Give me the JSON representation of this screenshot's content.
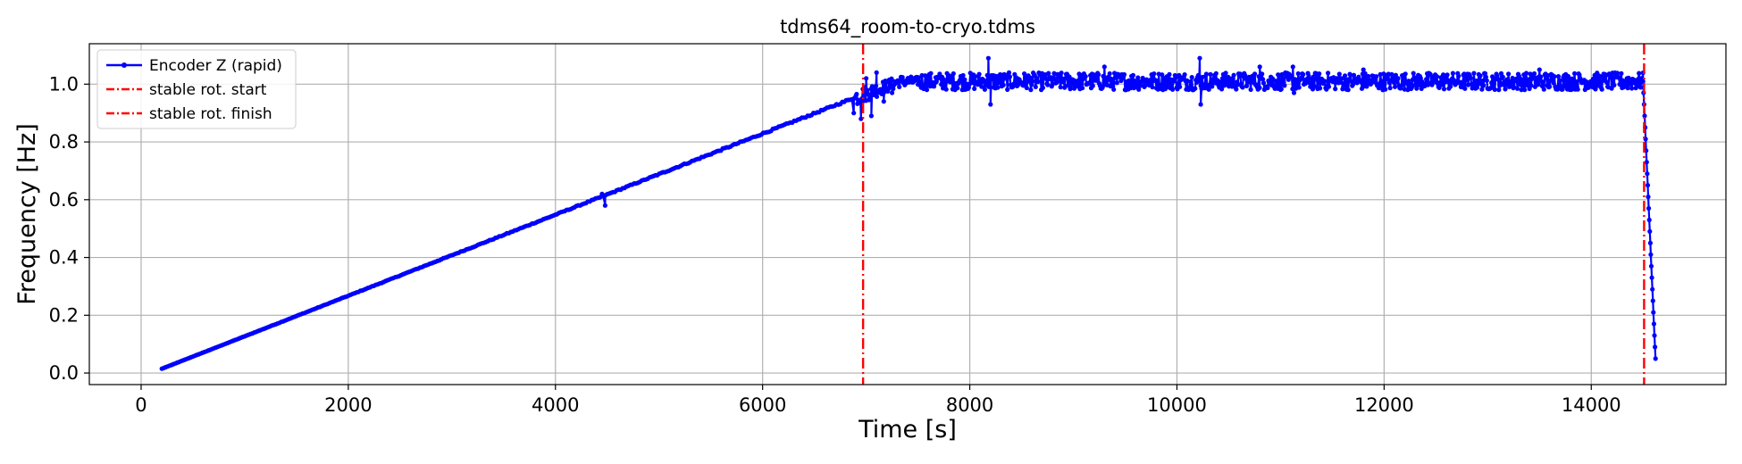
{
  "chart_data": {
    "type": "line",
    "title": "tdms64_room-to-cryo.tdms",
    "xlabel": "Time [s]",
    "ylabel": "Frequency [Hz]",
    "xlim": [
      -500,
      15300
    ],
    "ylim": [
      -0.04,
      1.14
    ],
    "xticks": [
      0,
      2000,
      4000,
      6000,
      8000,
      10000,
      12000,
      14000
    ],
    "yticks": [
      0.0,
      0.2,
      0.4,
      0.6,
      0.8,
      1.0
    ],
    "xtick_labels": [
      "0",
      "2000",
      "4000",
      "6000",
      "8000",
      "10000",
      "12000",
      "14000"
    ],
    "ytick_labels": [
      "0.0",
      "0.2",
      "0.4",
      "0.6",
      "0.8",
      "1.0"
    ],
    "grid": true,
    "legend_position": "top-left",
    "series": [
      {
        "name": "Encoder Z (rapid)",
        "color": "#0000ff",
        "marker": "dot",
        "segments": [
          {
            "from": [
              200,
              0.015
            ],
            "to": [
              6900,
              0.955
            ],
            "style": "linear-ramp"
          },
          {
            "from": [
              6900,
              0.955
            ],
            "to": [
              7500,
              1.01
            ],
            "style": "noisy-transition"
          },
          {
            "from": [
              7500,
              1.01
            ],
            "to": [
              14500,
              1.01
            ],
            "style": "noisy-plateau",
            "spread": 0.03
          },
          {
            "from": [
              14500,
              1.01
            ],
            "to": [
              14620,
              0.05
            ],
            "style": "steep-drop"
          }
        ],
        "outliers": [
          [
            4450,
            0.62
          ],
          [
            4480,
            0.58
          ],
          [
            6880,
            0.9
          ],
          [
            6950,
            0.88
          ],
          [
            7000,
            1.02
          ],
          [
            7050,
            0.89
          ],
          [
            7100,
            1.04
          ],
          [
            7170,
            0.94
          ],
          [
            7250,
            0.97
          ],
          [
            8180,
            1.09
          ],
          [
            8200,
            0.93
          ],
          [
            9300,
            1.06
          ],
          [
            10220,
            1.09
          ],
          [
            10230,
            0.93
          ],
          [
            10800,
            1.06
          ],
          [
            11120,
            1.06
          ],
          [
            11130,
            0.97
          ],
          [
            11800,
            1.05
          ],
          [
            13500,
            1.05
          ]
        ]
      }
    ],
    "vlines": [
      {
        "name": "stable rot. start",
        "x": 6970,
        "color": "#ff0000",
        "style": "dash-dot"
      },
      {
        "name": "stable rot. finish",
        "x": 14510,
        "color": "#ff0000",
        "style": "dash-dot"
      }
    ]
  }
}
